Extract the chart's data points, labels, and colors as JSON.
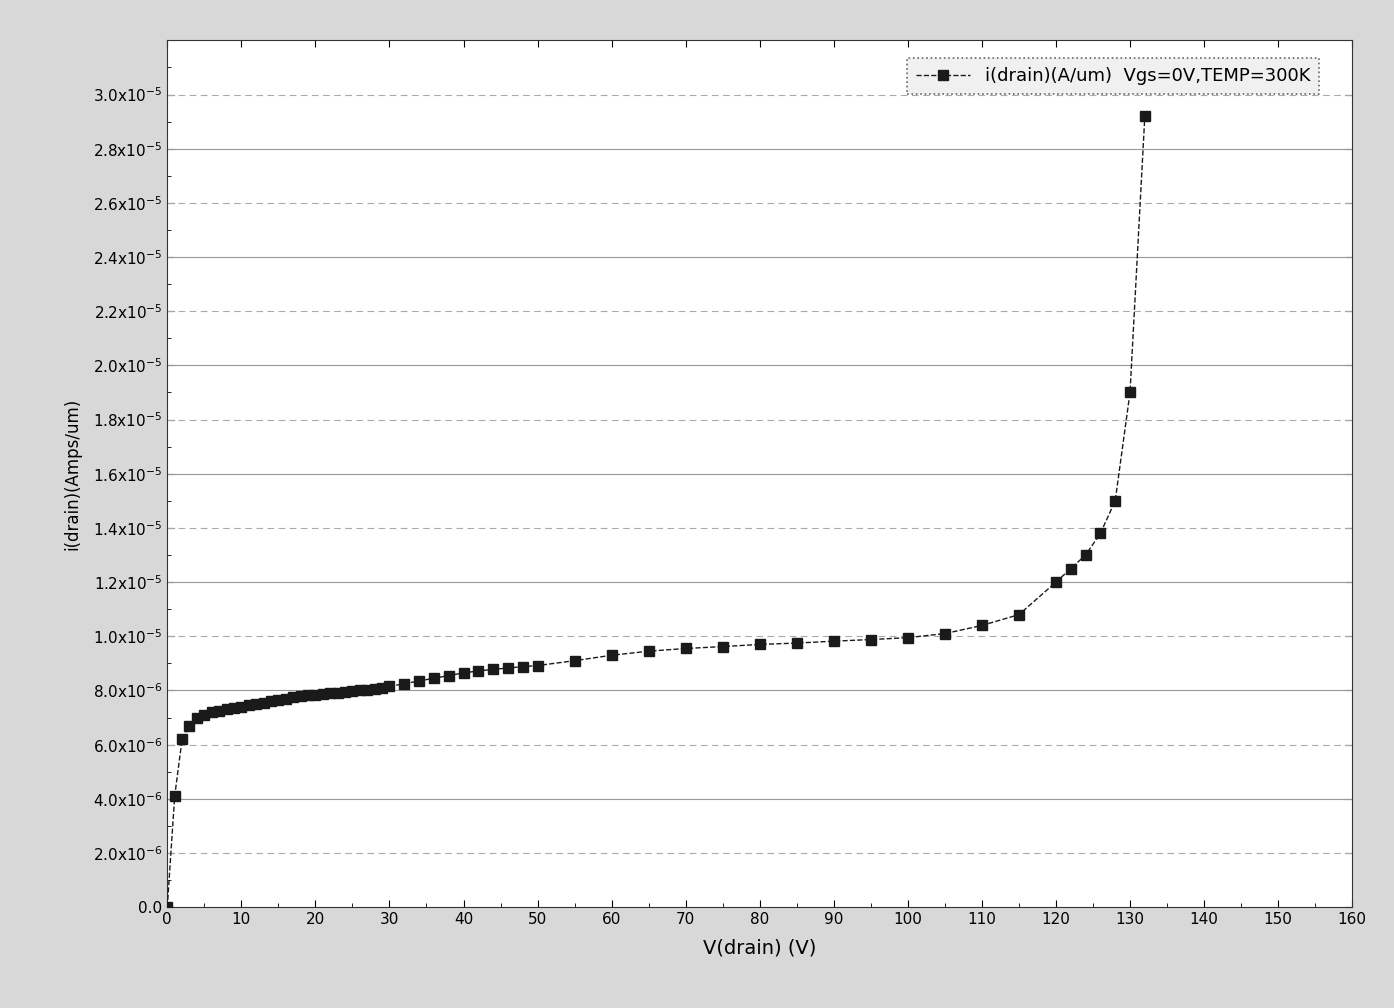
{
  "x": [
    0,
    1,
    2,
    3,
    4,
    5,
    6,
    7,
    8,
    9,
    10,
    11,
    12,
    13,
    14,
    15,
    16,
    17,
    18,
    19,
    20,
    21,
    22,
    23,
    24,
    25,
    26,
    27,
    28,
    29,
    30,
    32,
    34,
    36,
    38,
    40,
    42,
    44,
    46,
    48,
    50,
    55,
    60,
    65,
    70,
    75,
    80,
    85,
    90,
    95,
    100,
    105,
    110,
    115,
    120,
    122,
    124,
    126,
    128,
    130,
    132
  ],
  "y": [
    0.0,
    4.1e-06,
    6.2e-06,
    6.7e-06,
    7e-06,
    7.1e-06,
    7.2e-06,
    7.25e-06,
    7.3e-06,
    7.35e-06,
    7.4e-06,
    7.45e-06,
    7.5e-06,
    7.55e-06,
    7.6e-06,
    7.65e-06,
    7.7e-06,
    7.75e-06,
    7.78e-06,
    7.82e-06,
    7.85e-06,
    7.88e-06,
    7.9e-06,
    7.92e-06,
    7.95e-06,
    7.97e-06,
    8e-06,
    8.03e-06,
    8.07e-06,
    8.1e-06,
    8.15e-06,
    8.25e-06,
    8.35e-06,
    8.45e-06,
    8.55e-06,
    8.65e-06,
    8.72e-06,
    8.78e-06,
    8.83e-06,
    8.88e-06,
    8.92e-06,
    9.1e-06,
    9.3e-06,
    9.45e-06,
    9.55e-06,
    9.62e-06,
    9.7e-06,
    9.75e-06,
    9.82e-06,
    9.88e-06,
    9.95e-06,
    1.01e-05,
    1.04e-05,
    1.08e-05,
    1.2e-05,
    1.25e-05,
    1.3e-05,
    1.38e-05,
    1.5e-05,
    1.9e-05,
    2.92e-05
  ],
  "marker": "s",
  "color": "#1a1a1a",
  "line_style": "--",
  "marker_size": 7,
  "legend_label": "i(drain)(A/um)  Vgs=0V,TEMP=300K",
  "xlabel": "V(drain) (V)",
  "ylabel": "i(drain)(Amps/um)",
  "xlim": [
    0,
    160
  ],
  "ylim": [
    0.0,
    3.2e-05
  ],
  "xticks": [
    0,
    10,
    20,
    30,
    40,
    50,
    60,
    70,
    80,
    90,
    100,
    110,
    120,
    130,
    140,
    150,
    160
  ],
  "ytick_values": [
    0.0,
    2e-06,
    4e-06,
    6e-06,
    8e-06,
    1e-05,
    1.2e-05,
    1.4e-05,
    1.6e-05,
    1.8e-05,
    2e-05,
    2.2e-05,
    2.4e-05,
    2.6e-05,
    2.8e-05,
    3e-05
  ],
  "background_color": "#ffffff",
  "grid_color_solid": "#999999",
  "grid_color_dash": "#aaaaaa",
  "fig_background": "#d8d8d8"
}
